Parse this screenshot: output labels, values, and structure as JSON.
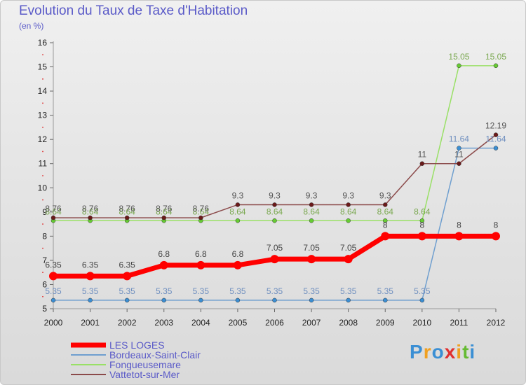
{
  "chart_data": {
    "type": "line",
    "title": "Evolution du Taux de Taxe d'Habitation",
    "unit_label": "(en %)",
    "x": [
      "2000",
      "2001",
      "2002",
      "2003",
      "2004",
      "2005",
      "2006",
      "2007",
      "2008",
      "2009",
      "2010",
      "2011",
      "2012"
    ],
    "ylim": [
      5,
      16
    ],
    "yticks": [
      5,
      6,
      7,
      8,
      9,
      10,
      11,
      12,
      13,
      14,
      15,
      16
    ],
    "series": [
      {
        "name": "LES LOGES",
        "color": "#ff0000",
        "marker": "#ff0000",
        "width": 7,
        "label_color": "#444444",
        "values": [
          6.35,
          6.35,
          6.35,
          6.8,
          6.8,
          6.8,
          7.05,
          7.05,
          7.05,
          8,
          8,
          8,
          8
        ],
        "labels": [
          "6.35",
          "6.35",
          "6.35",
          "6.8",
          "6.8",
          "6.8",
          "7.05",
          "7.05",
          "7.05",
          "8",
          "8",
          "8",
          "8"
        ]
      },
      {
        "name": "Bordeaux-Saint-Clair",
        "color": "#6f9fcf",
        "marker": "#3b8fd4",
        "width": 1.5,
        "label_color": "#6f8fbf",
        "values": [
          5.35,
          5.35,
          5.35,
          5.35,
          5.35,
          5.35,
          5.35,
          5.35,
          5.35,
          5.35,
          5.35,
          11.64,
          11.64
        ],
        "labels": [
          "5.35",
          "5.35",
          "5.35",
          "5.35",
          "5.35",
          "5.35",
          "5.35",
          "5.35",
          "5.35",
          "5.35",
          "5.35",
          "11.64",
          "11.64"
        ]
      },
      {
        "name": "Fongueusemare",
        "color": "#99e066",
        "marker": "#66cc33",
        "width": 1.5,
        "label_color": "#7aa850",
        "values": [
          8.64,
          8.64,
          8.64,
          8.64,
          8.64,
          8.64,
          8.64,
          8.64,
          8.64,
          8.64,
          8.64,
          15.05,
          15.05
        ],
        "labels": [
          "8.64",
          "8.64",
          "8.64",
          "8.64",
          "8.64",
          "8.64",
          "8.64",
          "8.64",
          "8.64",
          "8.64",
          "8.64",
          "15.05",
          "15.05"
        ]
      },
      {
        "name": "Vattetot-sur-Mer",
        "color": "#8b4a4a",
        "marker": "#6b1a1a",
        "width": 1.5,
        "label_color": "#555555",
        "values": [
          8.76,
          8.76,
          8.76,
          8.76,
          8.76,
          9.3,
          9.3,
          9.3,
          9.3,
          9.3,
          11,
          11,
          12.19
        ],
        "labels": [
          "8.76",
          "8.76",
          "8.76",
          "8.76",
          "8.76",
          "9.3",
          "9.3",
          "9.3",
          "9.3",
          "9.3",
          "11",
          "11",
          "12.19"
        ]
      }
    ]
  },
  "logo": {
    "letters": [
      "P",
      "r",
      "o",
      "x",
      "i",
      "t",
      "i"
    ],
    "colors": [
      "#3b8fd4",
      "#f0a020",
      "#3b8fd4",
      "#e03030",
      "#f0a020",
      "#66bb33",
      "#3b8fd4"
    ]
  }
}
